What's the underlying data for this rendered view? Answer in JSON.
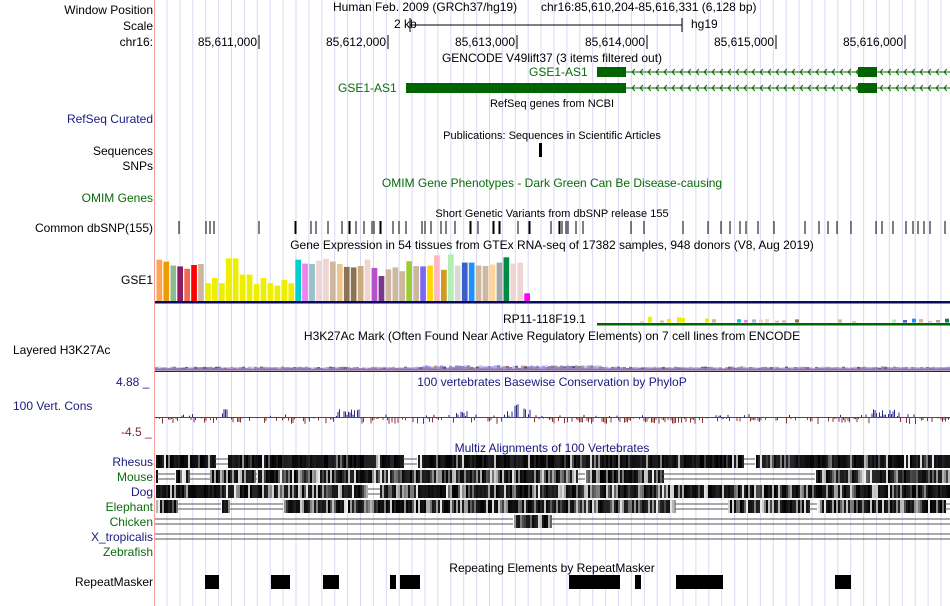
{
  "header": {
    "window_position_label": "Window Position",
    "scale_label": "Scale",
    "chrom_label": "chr16:",
    "assembly_title": "Human Feb. 2009 (GRCh37/hg19)",
    "position": "chr16:85,610,204-85,616,331 (6,128 bp)",
    "scale_value": "2 kb",
    "scale_assembly": "hg19",
    "ticks": [
      "85,611,000",
      "85,612,000",
      "85,613,000",
      "85,614,000",
      "85,615,000",
      "85,616,000"
    ]
  },
  "tracks": {
    "gencode": {
      "title": "GENCODE V49lift37 (3 items filtered out)",
      "items": [
        {
          "name": "GSE1-AS1",
          "strand": "-"
        },
        {
          "name": "GSE1-AS1",
          "strand": "-"
        }
      ]
    },
    "refseq": {
      "label": "RefSeq Curated",
      "title": "RefSeq genes from NCBI"
    },
    "publications": {
      "label_line1": "Sequences",
      "title": "Publications: Sequences in Scientific Articles"
    },
    "snps_label": "SNPs",
    "omim": {
      "label": "OMIM Genes",
      "title": "OMIM Gene Phenotypes - Dark Green Can Be Disease-causing"
    },
    "dbsnp": {
      "label": "Common dbSNP(155)",
      "title": "Short Genetic Variants from dbSNP release 155"
    },
    "gtex": {
      "label": "GSE1",
      "title": "Gene Expression in 54 tissues from GTEx RNA-seq of 17382 samples, 948 donors (V8, Aug 2019)",
      "second_gene": "RP11-118F19.1",
      "tissue_colors": [
        "#FFA54F",
        "#EE9A00",
        "#8FBC8F",
        "#8B1C62",
        "#EE6A50",
        "#FF0000",
        "#CDB79E",
        "#EEEE00",
        "#EEEE00",
        "#EEEE00",
        "#EEEE00",
        "#EEEE00",
        "#EEEE00",
        "#EEEE00",
        "#EEEE00",
        "#EEEE00",
        "#EEEE00",
        "#EEEE00",
        "#EEEE00",
        "#EEEE00",
        "#00CED1",
        "#EE82EE",
        "#9AC0CD",
        "#EED5D2",
        "#EED5D2",
        "#CDB79E",
        "#EEC591",
        "#8B7355",
        "#8B7355",
        "#CDAA7D",
        "#EED5D2",
        "#B452CD",
        "#7A378B",
        "#CDB79E",
        "#CDB79E",
        "#CDB79E",
        "#9ACD32",
        "#CDB79E",
        "#7B68EE",
        "#FFD700",
        "#FFB6C1",
        "#CD9B1D",
        "#B4EEB4",
        "#D9D9D9",
        "#3A5FCD",
        "#1E90FF",
        "#CDB79E",
        "#CDB79E",
        "#FFD39B",
        "#A6A6A6",
        "#008B45",
        "#EED5D2",
        "#EED5D2",
        "#FF00FF"
      ],
      "relative_values": [
        0.86,
        0.82,
        0.74,
        0.72,
        0.67,
        0.75,
        0.77,
        0.37,
        0.48,
        0.37,
        0.89,
        0.89,
        0.55,
        0.55,
        0.35,
        0.48,
        0.37,
        0.32,
        0.44,
        0.37,
        0.86,
        0.78,
        0.77,
        0.84,
        0.88,
        0.82,
        0.77,
        0.71,
        0.7,
        0.73,
        0.86,
        0.69,
        0.52,
        0.66,
        0.7,
        0.62,
        0.83,
        0.73,
        0.72,
        0.74,
        0.95,
        0.65,
        0.97,
        0.74,
        0.8,
        0.8,
        0.74,
        0.73,
        0.76,
        0.8,
        0.91,
        0.78,
        0.8,
        0.16
      ]
    },
    "h3k27ac": {
      "label": "Layered H3K27Ac",
      "title": "H3K27Ac Mark (Often Found Near Active Regulatory Elements) on 7 cell lines from ENCODE"
    },
    "conservation": {
      "label": "100 Vert. Cons",
      "max_label": "4.88 _",
      "min_label": "-4.5 _",
      "title": "100 vertebrates Basewise Conservation by PhyloP"
    },
    "multiz": {
      "title": "Multiz Alignments of 100 Vertebrates",
      "species": [
        {
          "name": "Rhesus",
          "color": "#1a1a80"
        },
        {
          "name": "Mouse",
          "color": "#0a6a0a"
        },
        {
          "name": "Dog",
          "color": "#1a1a80"
        },
        {
          "name": "Elephant",
          "color": "#0a6a0a"
        },
        {
          "name": "Chicken",
          "color": "#0a6a0a"
        },
        {
          "name": "X_tropicalis",
          "color": "#1a1a80"
        },
        {
          "name": "Zebrafish",
          "color": "#0a6a0a"
        }
      ]
    },
    "repeatmasker": {
      "label": "RepeatMasker",
      "title": "Repeating Elements by RepeatMasker"
    }
  },
  "colors": {
    "gene_green": "#006400",
    "grid_line": "#d8d8f4",
    "left_border": "#f4a0a0",
    "cons_positive": "#2a2a8a",
    "cons_negative": "#8a3030",
    "gtex_baseline": "#0a0a60"
  }
}
